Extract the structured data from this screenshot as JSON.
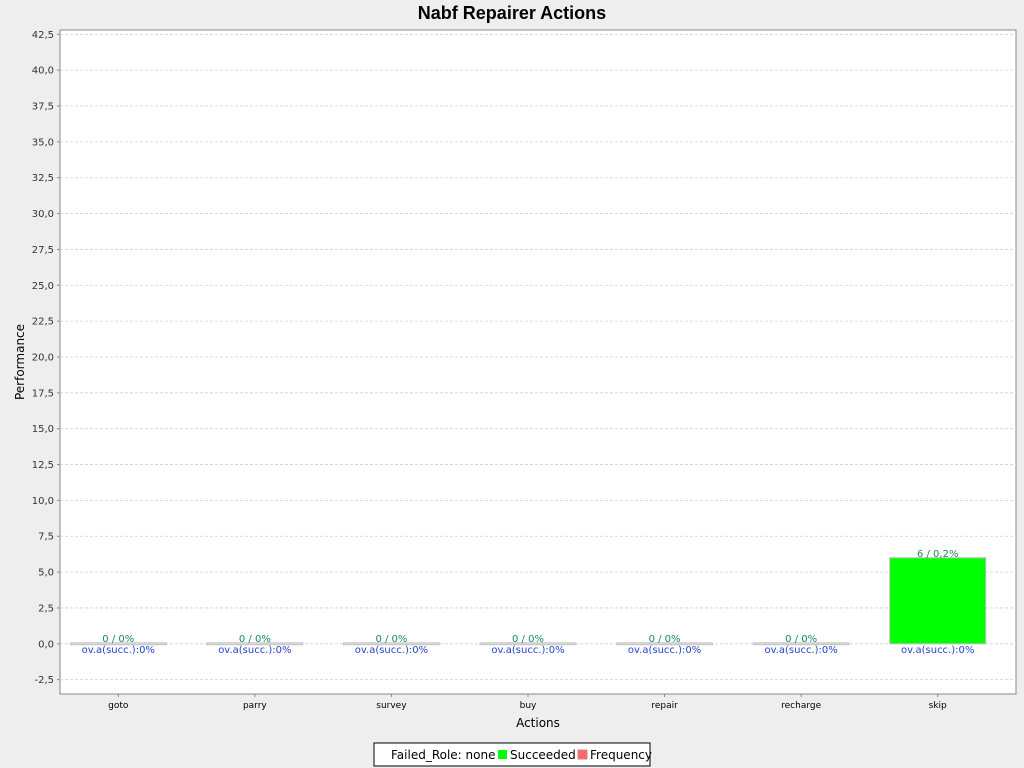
{
  "chart_data": {
    "type": "bar",
    "title": "Nabf Repairer Actions",
    "xlabel": "Actions",
    "ylabel": "Performance",
    "categories": [
      "goto",
      "parry",
      "survey",
      "buy",
      "repair",
      "recharge",
      "skip"
    ],
    "series": [
      {
        "name": "Failed_Role: none",
        "values": [
          0,
          0,
          0,
          0,
          0,
          0,
          0
        ]
      },
      {
        "name": "Succeeded",
        "values": [
          0,
          0,
          0,
          0,
          0,
          0,
          6.0
        ]
      },
      {
        "name": "Frequency",
        "values": [
          0,
          0,
          0,
          0,
          0,
          0,
          0
        ]
      }
    ],
    "top_labels": [
      "0 / 0%",
      "0 / 0%",
      "0 / 0%",
      "0 / 0%",
      "0 / 0%",
      "0 / 0%",
      "6 / 0,2%"
    ],
    "bottom_labels": [
      "ov.a(succ.):0%",
      "ov.a(succ.):0%",
      "ov.a(succ.):0%",
      "ov.a(succ.):0%",
      "ov.a(succ.):0%",
      "ov.a(succ.):0%",
      "ov.a(succ.):0%"
    ],
    "ylim": [
      -3.5,
      42.8
    ],
    "yticks": [
      -2.5,
      0.0,
      2.5,
      5.0,
      7.5,
      10.0,
      12.5,
      15.0,
      17.5,
      20.0,
      22.5,
      25.0,
      27.5,
      30.0,
      32.5,
      35.0,
      37.5,
      40.0,
      42.5
    ],
    "ytick_labels": [
      "-2,5",
      "0,0",
      "2,5",
      "5,0",
      "7,5",
      "10,0",
      "12,5",
      "15,0",
      "17,5",
      "20,0",
      "22,5",
      "25,0",
      "27,5",
      "30,0",
      "32,5",
      "35,0",
      "37,5",
      "40,0",
      "42,5"
    ],
    "grid": true,
    "legend_position": "bottom",
    "colors": {
      "succeeded": "#00ff00",
      "frequency": "#ff6666",
      "grid": "#d0d0d0"
    }
  },
  "legend": {
    "items": [
      {
        "label": "Failed_Role: none",
        "swatch": "none"
      },
      {
        "label": "Succeeded",
        "swatch": "#00ff00"
      },
      {
        "label": "Frequency",
        "swatch": "#ff6666"
      }
    ]
  }
}
